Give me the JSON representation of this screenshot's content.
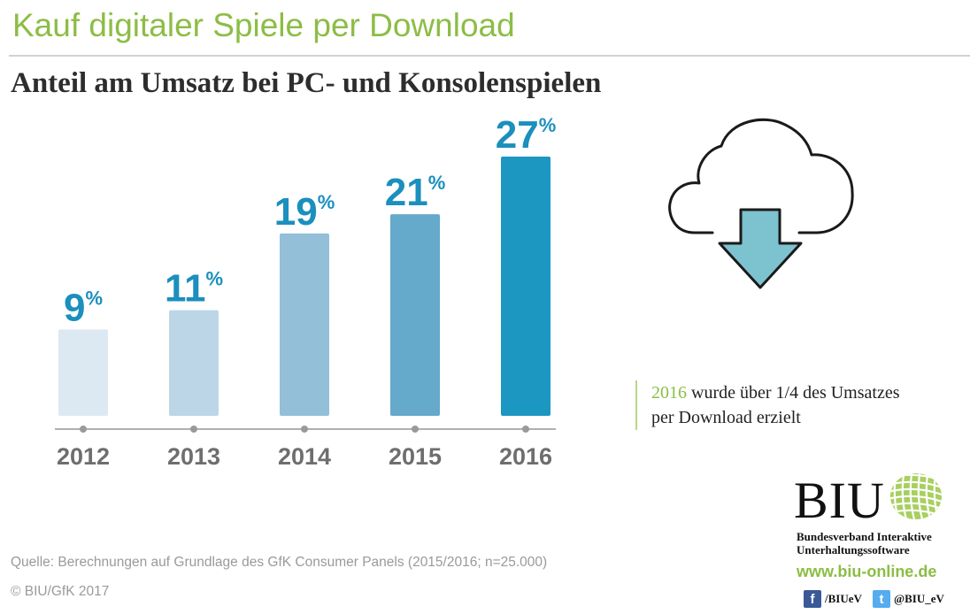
{
  "header": {
    "title": "Kauf digitaler Spiele per Download",
    "subtitle": "Anteil am Umsatz bei PC- und Konsolenspielen"
  },
  "chart_data": {
    "type": "bar",
    "categories": [
      "2012",
      "2013",
      "2014",
      "2015",
      "2016"
    ],
    "values": [
      9,
      11,
      19,
      21,
      27
    ],
    "value_suffix": "%",
    "title": "Anteil am Umsatz bei PC- und Konsolenspielen",
    "xlabel": "",
    "ylabel": "",
    "ylim": [
      0,
      27
    ],
    "grid": false,
    "bar_colors": [
      "#dce9f3",
      "#bcd6e7",
      "#93bfd9",
      "#65a9cb",
      "#1b97c1"
    ],
    "label_color": "#1b8fbd",
    "tick_label_color": "#6e6e6e"
  },
  "callout": {
    "year": "2016",
    "line1_rest": " wurde über 1/4 des Umsatzes",
    "line2": "per Download erzielt"
  },
  "icons": {
    "cloud": "cloud-download-icon",
    "arrow_color": "#7dc2cf"
  },
  "footer": {
    "source": "Quelle: Berechnungen auf Grundlage des GfK Consumer Panels (2015/2016; n=25.000)",
    "copyright": "© BIU/GfK 2017"
  },
  "branding": {
    "logo_text": "BIU",
    "full_name_line1": "Bundesverband Interaktive",
    "full_name_line2": "Unterhaltungssoftware",
    "url": "www.biu-online.de",
    "facebook_handle": "/BIUeV",
    "twitter_handle": "@BIU_eV",
    "facebook_glyph": "f",
    "twitter_glyph": "t",
    "accent_color": "#8cbd45"
  }
}
